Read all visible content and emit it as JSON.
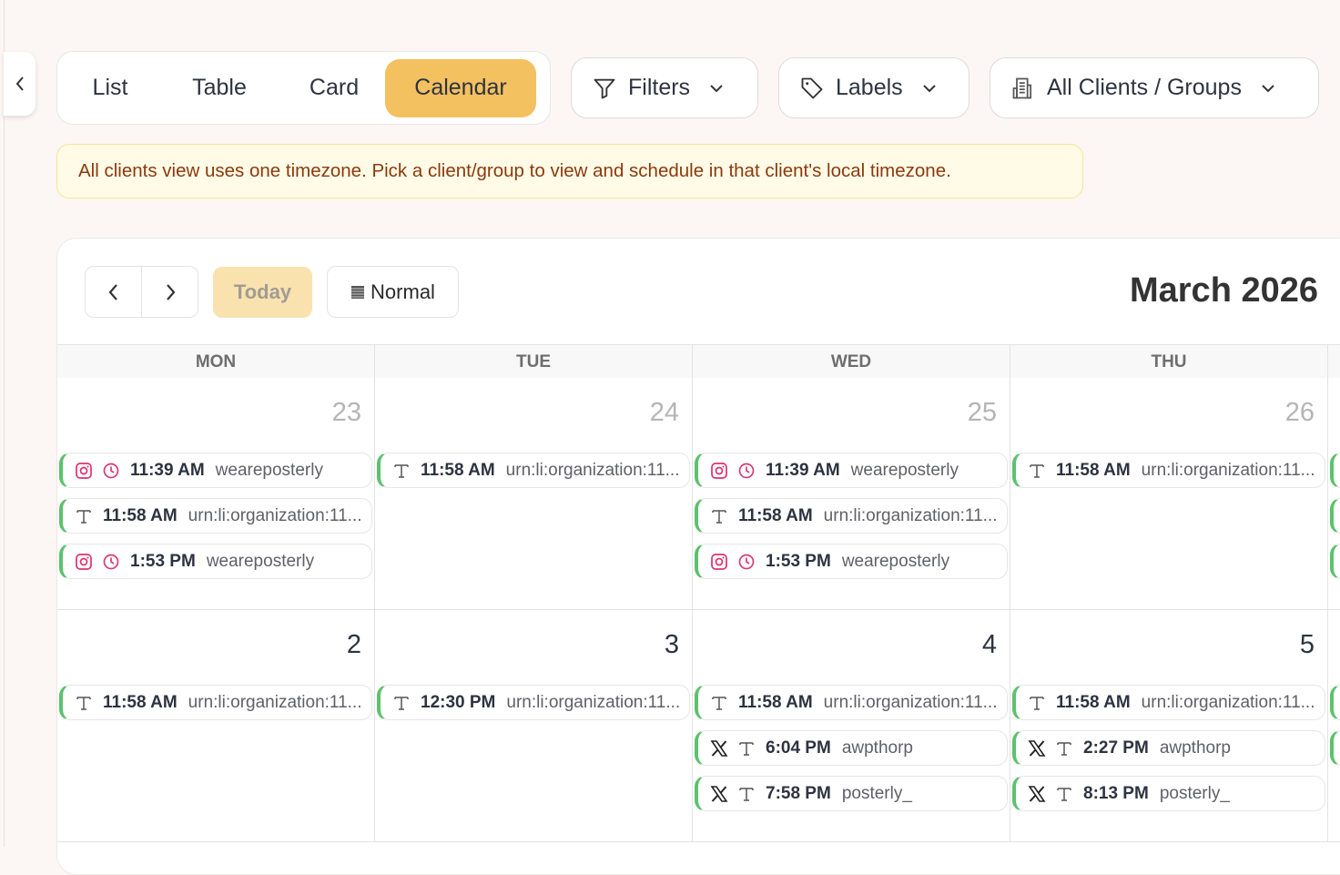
{
  "view_tabs": [
    {
      "label": "List",
      "active": false
    },
    {
      "label": "Table",
      "active": false
    },
    {
      "label": "Card",
      "active": false
    },
    {
      "label": "Calendar",
      "active": true
    }
  ],
  "filters": {
    "filters_label": "Filters",
    "labels_label": "Labels",
    "clients_label": "All Clients / Groups"
  },
  "banner": "All clients view uses one timezone. Pick a client/group to view and schedule in that client's local timezone.",
  "toolbar": {
    "today": "Today",
    "density": "Normal",
    "month_title": "March 2026"
  },
  "colors": {
    "accent": "#f4c160",
    "event_border": "#5cc26d",
    "instagram": "#e1306c"
  },
  "weekdays": [
    "MON",
    "TUE",
    "WED",
    "THU"
  ],
  "weeks": [
    {
      "days": [
        {
          "num": "23",
          "muted": true,
          "events": [
            {
              "icons": [
                "instagram",
                "clock"
              ],
              "time": "11:39 AM",
              "account": "weareposterly"
            },
            {
              "icons": [
                "text"
              ],
              "time": "11:58 AM",
              "account": "urn:li:organization:11..."
            },
            {
              "icons": [
                "instagram",
                "clock"
              ],
              "time": "1:53 PM",
              "account": "weareposterly"
            }
          ]
        },
        {
          "num": "24",
          "muted": true,
          "events": [
            {
              "icons": [
                "text"
              ],
              "time": "11:58 AM",
              "account": "urn:li:organization:11..."
            }
          ]
        },
        {
          "num": "25",
          "muted": true,
          "events": [
            {
              "icons": [
                "instagram",
                "clock"
              ],
              "time": "11:39 AM",
              "account": "weareposterly"
            },
            {
              "icons": [
                "text"
              ],
              "time": "11:58 AM",
              "account": "urn:li:organization:11..."
            },
            {
              "icons": [
                "instagram",
                "clock"
              ],
              "time": "1:53 PM",
              "account": "weareposterly"
            }
          ]
        },
        {
          "num": "26",
          "muted": true,
          "events": [
            {
              "icons": [
                "text"
              ],
              "time": "11:58 AM",
              "account": "urn:li:organization:11..."
            }
          ]
        }
      ]
    },
    {
      "days": [
        {
          "num": "2",
          "muted": false,
          "events": [
            {
              "icons": [
                "text"
              ],
              "time": "11:58 AM",
              "account": "urn:li:organization:11..."
            }
          ]
        },
        {
          "num": "3",
          "muted": false,
          "events": [
            {
              "icons": [
                "text"
              ],
              "time": "12:30 PM",
              "account": "urn:li:organization:11..."
            }
          ]
        },
        {
          "num": "4",
          "muted": false,
          "events": [
            {
              "icons": [
                "text"
              ],
              "time": "11:58 AM",
              "account": "urn:li:organization:11..."
            },
            {
              "icons": [
                "x",
                "text"
              ],
              "time": "6:04 PM",
              "account": "awpthorp"
            },
            {
              "icons": [
                "x",
                "text"
              ],
              "time": "7:58 PM",
              "account": "posterly_"
            }
          ]
        },
        {
          "num": "5",
          "muted": false,
          "events": [
            {
              "icons": [
                "text"
              ],
              "time": "11:58 AM",
              "account": "urn:li:organization:11..."
            },
            {
              "icons": [
                "x",
                "text"
              ],
              "time": "2:27 PM",
              "account": "awpthorp"
            },
            {
              "icons": [
                "x",
                "text"
              ],
              "time": "8:13 PM",
              "account": "posterly_"
            }
          ]
        }
      ]
    }
  ]
}
